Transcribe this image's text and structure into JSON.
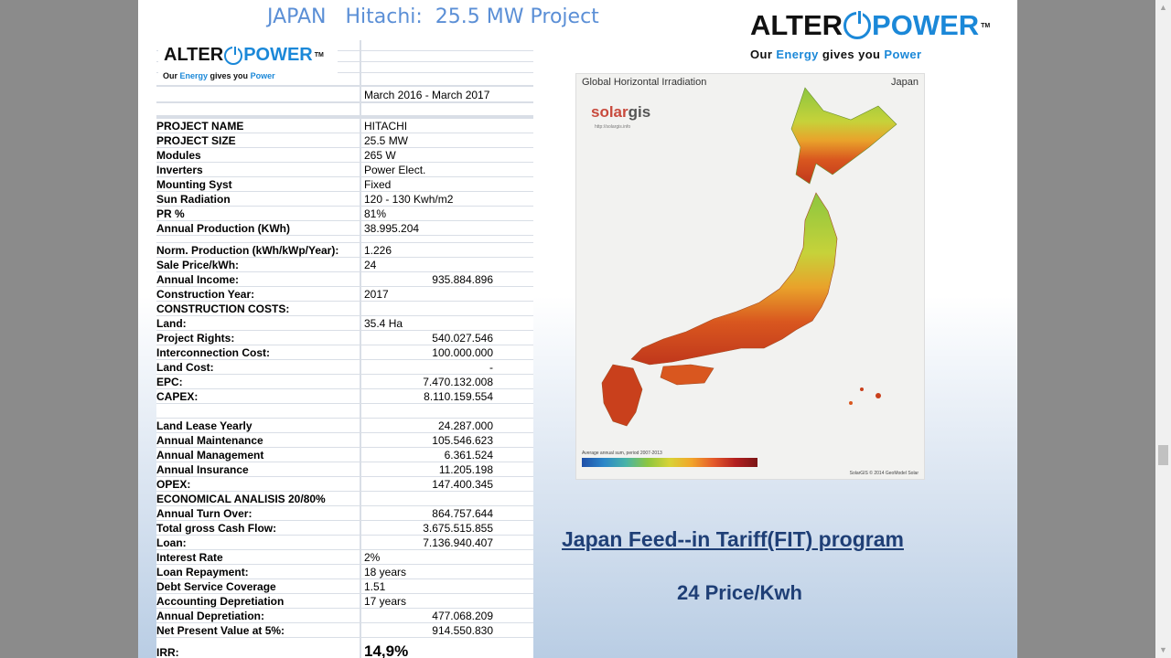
{
  "page": {
    "title": "JAPAN   Hitachi:  25.5 MW Project"
  },
  "logo": {
    "word_left": "ALTER",
    "word_right": "POWER",
    "tm": "TM",
    "tagline": {
      "t1": "Our ",
      "t2": "Energy",
      "t3": " gives you ",
      "t4": "Power"
    }
  },
  "table": {
    "period": "March 2016 - March 2017",
    "rows": [
      {
        "label": "PROJECT NAME",
        "value": "HITACHI"
      },
      {
        "label": "PROJECT SIZE",
        "value": "25.5 MW"
      },
      {
        "label": "Modules",
        "value": "265 W"
      },
      {
        "label": "Inverters",
        "value": "Power Elect."
      },
      {
        "label": "Mounting Syst",
        "value": "Fixed"
      },
      {
        "label": "Sun Radiation",
        "value": "120 - 130 Kwh/m2"
      },
      {
        "label": "PR %",
        "value": "81%"
      },
      {
        "label": "Annual Production (KWh)",
        "value": "38.995.204"
      },
      {
        "label": "Norm. Production (kWh/kWp/Year):",
        "value": "1.226"
      },
      {
        "label": "Sale Price/kWh:",
        "value": "24"
      },
      {
        "label": "Annual Income:",
        "value": "935.884.896"
      },
      {
        "label": "Construction Year:",
        "value": "2017"
      },
      {
        "label": "CONSTRUCTION COSTS:",
        "value": ""
      },
      {
        "label": "Land:",
        "value": "35.4 Ha"
      },
      {
        "label": "Project Rights:",
        "value": "540.027.546"
      },
      {
        "label": "Interconnection Cost:",
        "value": "100.000.000"
      },
      {
        "label": "Land Cost:",
        "value": "-"
      },
      {
        "label": "EPC:",
        "value": "7.470.132.008"
      },
      {
        "label": "CAPEX:",
        "value": "8.110.159.554"
      },
      {
        "label": "Land Lease Yearly",
        "value": "24.287.000"
      },
      {
        "label": "Annual Maintenance",
        "value": "105.546.623"
      },
      {
        "label": "Annual Management",
        "value": "6.361.524"
      },
      {
        "label": "Annual Insurance",
        "value": "11.205.198"
      },
      {
        "label": "OPEX:",
        "value": "147.400.345"
      },
      {
        "label": "ECONOMICAL ANALISIS 20/80%",
        "value": ""
      },
      {
        "label": "Annual Turn Over:",
        "value": "864.757.644"
      },
      {
        "label": "Total gross Cash Flow:",
        "value": "3.675.515.855"
      },
      {
        "label": "Loan:",
        "value": "7.136.940.407"
      },
      {
        "label": "Interest Rate",
        "value": "2%"
      },
      {
        "label": "Loan Repayment:",
        "value": "18 years"
      },
      {
        "label": "Debt Service Coverage",
        "value": "1.51"
      },
      {
        "label": "Accounting Depretiation",
        "value": "17 years"
      },
      {
        "label": "Annual Depretiation:",
        "value": "477.068.209"
      },
      {
        "label": "Net Present Value at 5%:",
        "value": "914.550.830"
      },
      {
        "label": "IRR:",
        "value": "14,9%"
      }
    ]
  },
  "map": {
    "title": "Global Horizontal Irradiation",
    "country": "Japan",
    "brand_a": "solar",
    "brand_b": "gis",
    "brand_url": "http://solargis.info",
    "legend_label": "Average annual sum, period 2007-2013",
    "credit": "SolarGIS © 2014 GeoModel Solar",
    "colors": {
      "sea": "#f2f2f0",
      "land_low": "#8cc63f",
      "land_high": "#c9301f"
    }
  },
  "fit_link": "Japan Feed--in Tariff(FIT) program",
  "price_text": "24 Price/Kwh",
  "scrollbar": {
    "up": "▲",
    "down": "▼"
  }
}
